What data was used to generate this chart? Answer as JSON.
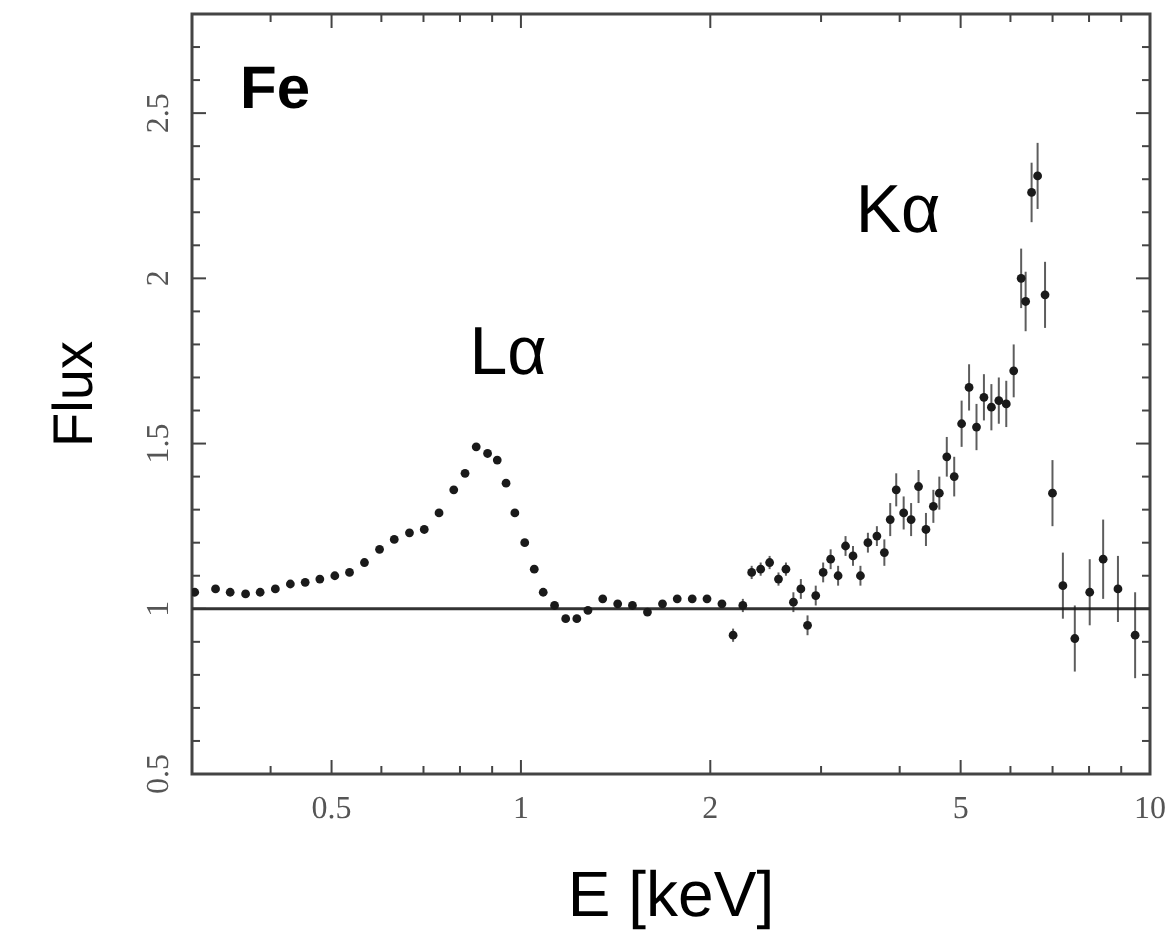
{
  "chart_data": {
    "type": "scatter",
    "title": "Fe",
    "xlabel": "E [keV]",
    "ylabel": "Flux",
    "log": "x",
    "marker": "circle",
    "grid": false,
    "xlim": [
      0.3,
      10
    ],
    "ylim": [
      0.5,
      2.8
    ],
    "xticks": [
      {
        "value": 0.3,
        "label": null
      },
      {
        "value": 0.4,
        "label": null
      },
      0.5,
      {
        "value": 0.6,
        "label": null
      },
      {
        "value": 0.7,
        "label": null
      },
      {
        "value": 0.8,
        "label": null
      },
      {
        "value": 0.9,
        "label": null
      },
      1,
      2,
      {
        "value": 3,
        "label": null
      },
      {
        "value": 4,
        "label": null
      },
      5,
      {
        "value": 6,
        "label": null
      },
      {
        "value": 7,
        "label": null
      },
      {
        "value": 8,
        "label": null
      },
      {
        "value": 9,
        "label": null
      },
      10
    ],
    "yticks": [
      0.5,
      {
        "value": 0.6,
        "label": null
      },
      {
        "value": 0.7,
        "label": null
      },
      {
        "value": 0.8,
        "label": null
      },
      {
        "value": 0.9,
        "label": null
      },
      1,
      {
        "value": 1.1,
        "label": null
      },
      {
        "value": 1.2,
        "label": null
      },
      {
        "value": 1.3,
        "label": null
      },
      {
        "value": 1.4,
        "label": null
      },
      1.5,
      {
        "value": 1.6,
        "label": null
      },
      {
        "value": 1.7,
        "label": null
      },
      {
        "value": 1.8,
        "label": null
      },
      {
        "value": 1.9,
        "label": null
      },
      2,
      {
        "value": 2.1,
        "label": null
      },
      {
        "value": 2.2,
        "label": null
      },
      {
        "value": 2.3,
        "label": null
      },
      {
        "value": 2.4,
        "label": null
      },
      2.5,
      {
        "value": 2.6,
        "label": null
      },
      {
        "value": 2.7,
        "label": null
      }
    ],
    "ref_lines": [
      {
        "axis": "y",
        "value": 1,
        "color": "#333333"
      }
    ],
    "annotations": [
      "Lα",
      "Kα"
    ],
    "series": [
      {
        "color": "#1a1a1a",
        "x": [
          0.303,
          0.327,
          0.345,
          0.365,
          0.385,
          0.407,
          0.43,
          0.454,
          0.479,
          0.506,
          0.534,
          0.564,
          0.596,
          0.629,
          0.665,
          0.702,
          0.741,
          0.782,
          0.815,
          0.849,
          0.885,
          0.917,
          0.947,
          0.978,
          1.014,
          1.05,
          1.085,
          1.131,
          1.178,
          1.227,
          1.278,
          1.349,
          1.425,
          1.504,
          1.589,
          1.679,
          1.772,
          1.872,
          1.976,
          2.087,
          2.174,
          2.253,
          2.327,
          2.405,
          2.485,
          2.567,
          2.638,
          2.711,
          2.786,
          2.855,
          2.942,
          3.023,
          3.107,
          3.193,
          3.281,
          3.372,
          3.465,
          3.561,
          3.68,
          3.782,
          3.864,
          3.95,
          4.059,
          4.171,
          4.286,
          4.404,
          4.525,
          4.625,
          4.753,
          4.884,
          5.018,
          5.157,
          5.299,
          5.445,
          5.596,
          5.75,
          5.909,
          6.072,
          6.24,
          6.343,
          6.483,
          6.627,
          6.81,
          6.998,
          7.27,
          7.594,
          8.02,
          8.424,
          8.893,
          9.47
        ],
        "values": [
          1.05,
          1.06,
          1.05,
          1.045,
          1.05,
          1.06,
          1.075,
          1.08,
          1.09,
          1.1,
          1.11,
          1.14,
          1.18,
          1.21,
          1.23,
          1.24,
          1.29,
          1.36,
          1.41,
          1.49,
          1.47,
          1.45,
          1.38,
          1.29,
          1.2,
          1.12,
          1.05,
          1.01,
          0.97,
          0.97,
          0.995,
          1.03,
          1.015,
          1.01,
          0.99,
          1.015,
          1.03,
          1.03,
          1.03,
          1.015,
          0.92,
          1.01,
          1.11,
          1.12,
          1.14,
          1.09,
          1.12,
          1.02,
          1.06,
          0.95,
          1.04,
          1.11,
          1.15,
          1.1,
          1.19,
          1.16,
          1.1,
          1.2,
          1.22,
          1.17,
          1.27,
          1.36,
          1.29,
          1.27,
          1.37,
          1.24,
          1.31,
          1.35,
          1.46,
          1.4,
          1.56,
          1.67,
          1.55,
          1.64,
          1.61,
          1.63,
          1.62,
          1.72,
          2.0,
          1.93,
          2.26,
          2.31,
          1.95,
          1.35,
          1.07,
          0.91,
          1.05,
          1.15,
          1.06,
          0.92
        ],
        "errors": [
          null,
          null,
          null,
          null,
          null,
          null,
          null,
          null,
          null,
          null,
          null,
          null,
          null,
          null,
          null,
          null,
          null,
          null,
          null,
          null,
          null,
          null,
          null,
          null,
          null,
          null,
          null,
          null,
          null,
          null,
          null,
          null,
          null,
          null,
          null,
          null,
          null,
          null,
          null,
          null,
          0.02,
          0.02,
          0.02,
          0.02,
          0.02,
          0.02,
          0.02,
          0.03,
          0.03,
          0.03,
          0.03,
          0.03,
          0.03,
          0.03,
          0.03,
          0.03,
          0.03,
          0.03,
          0.03,
          0.04,
          0.05,
          0.05,
          0.05,
          0.05,
          0.05,
          0.05,
          0.05,
          0.05,
          0.06,
          0.06,
          0.07,
          0.07,
          0.07,
          0.07,
          0.07,
          0.07,
          0.07,
          0.08,
          0.09,
          0.09,
          0.09,
          0.1,
          0.1,
          0.1,
          0.1,
          0.1,
          0.1,
          0.12,
          0.1,
          0.13
        ]
      }
    ]
  }
}
